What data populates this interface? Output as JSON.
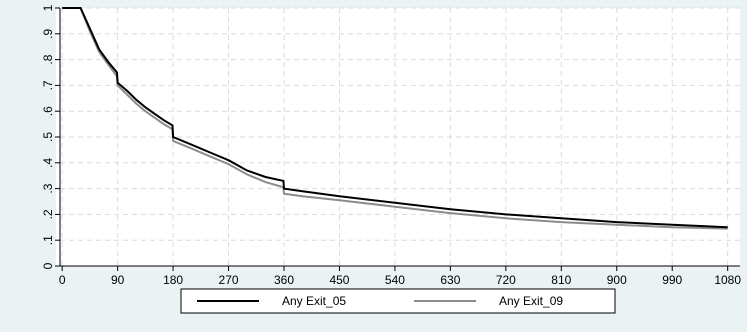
{
  "chart_data": {
    "type": "line",
    "title": "",
    "xlabel": "",
    "ylabel": "",
    "xlim": [
      -10,
      1100
    ],
    "ylim": [
      0,
      1
    ],
    "grid": true,
    "legend_position": "bottom",
    "x_ticks": [
      0,
      90,
      180,
      270,
      360,
      450,
      540,
      630,
      720,
      810,
      900,
      990,
      1080
    ],
    "x_tick_labels": [
      "0",
      "90",
      "180",
      "270",
      "360",
      "450",
      "540",
      "630",
      "720",
      "810",
      "900",
      "990",
      "1080"
    ],
    "y_ticks": [
      0,
      0.1,
      0.2,
      0.3,
      0.4,
      0.5,
      0.6,
      0.7,
      0.8,
      0.9,
      1
    ],
    "y_tick_labels": [
      "0",
      ".1",
      ".2",
      ".3",
      ".4",
      ".5",
      ".6",
      ".7",
      ".8",
      ".9",
      "1"
    ],
    "series": [
      {
        "name": "Any Exit_05",
        "color": "#000000",
        "x": [
          0,
          30,
          45,
          60,
          75,
          89,
          90,
          105,
          120,
          135,
          150,
          165,
          179,
          180,
          210,
          240,
          270,
          300,
          330,
          359,
          360,
          390,
          450,
          540,
          630,
          720,
          810,
          900,
          990,
          1080
        ],
        "y": [
          1,
          1,
          0.92,
          0.84,
          0.79,
          0.75,
          0.71,
          0.68,
          0.645,
          0.615,
          0.59,
          0.565,
          0.545,
          0.5,
          0.47,
          0.44,
          0.41,
          0.37,
          0.345,
          0.33,
          0.3,
          0.29,
          0.27,
          0.245,
          0.22,
          0.2,
          0.185,
          0.17,
          0.16,
          0.15
        ]
      },
      {
        "name": "Any Exit_09",
        "color": "#8c8c8c",
        "x": [
          0,
          30,
          45,
          60,
          75,
          89,
          90,
          105,
          120,
          135,
          150,
          165,
          179,
          180,
          210,
          240,
          270,
          300,
          330,
          359,
          360,
          390,
          450,
          540,
          630,
          720,
          810,
          900,
          990,
          1080
        ],
        "y": [
          1,
          1,
          0.91,
          0.83,
          0.78,
          0.735,
          0.7,
          0.665,
          0.63,
          0.6,
          0.575,
          0.55,
          0.53,
          0.485,
          0.455,
          0.425,
          0.395,
          0.355,
          0.325,
          0.305,
          0.28,
          0.27,
          0.255,
          0.23,
          0.205,
          0.185,
          0.17,
          0.16,
          0.15,
          0.145
        ]
      }
    ]
  }
}
